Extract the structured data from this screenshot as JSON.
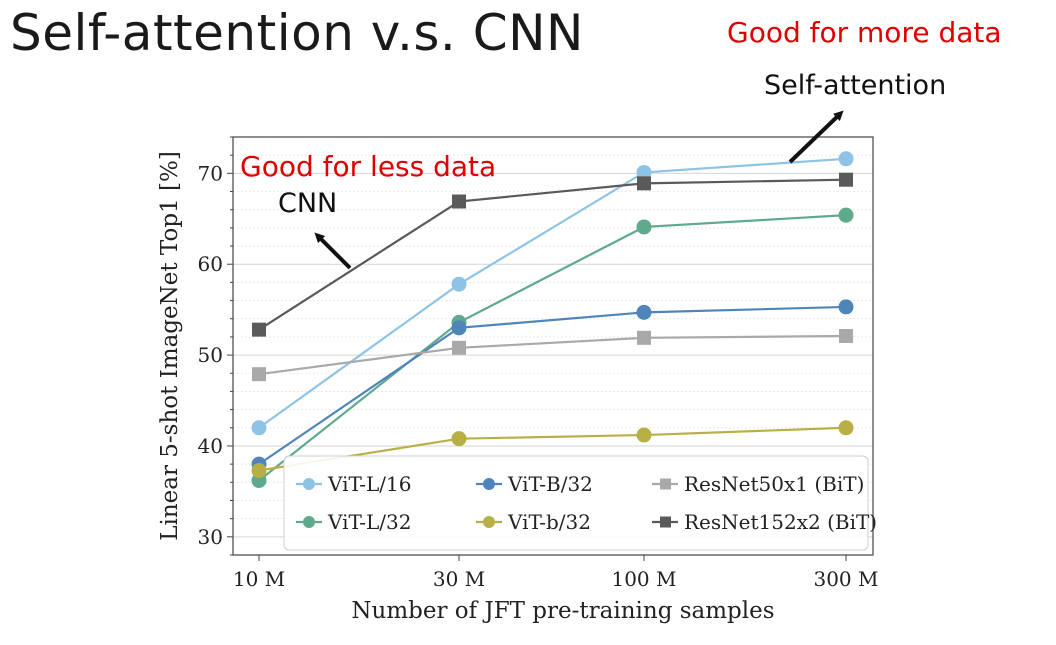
{
  "slide": {
    "title": "Self-attention v.s. CNN",
    "note_more_data": "Good for more data",
    "label_self_attention": "Self-attention",
    "note_less_data": "Good for less data",
    "label_cnn": "CNN"
  },
  "chart_data": {
    "type": "line",
    "xlabel": "Number of JFT pre-training samples",
    "ylabel": "Linear 5-shot ImageNet Top1 [%]",
    "x_scale": "log",
    "categories": [
      "10 M",
      "30 M",
      "100 M",
      "300 M"
    ],
    "ylim": [
      28,
      74
    ],
    "yticks": [
      30,
      40,
      50,
      60,
      70
    ],
    "grid": true,
    "legend_position": "bottom-right",
    "series": [
      {
        "name": "ViT-L/16",
        "color": "#8ec3e6",
        "marker": "circle",
        "values": [
          42.0,
          57.8,
          70.1,
          71.6
        ]
      },
      {
        "name": "ViT-L/32",
        "color": "#5fa98c",
        "marker": "circle",
        "values": [
          36.2,
          53.6,
          64.1,
          65.4
        ]
      },
      {
        "name": "ViT-B/32",
        "color": "#4f85b9",
        "marker": "circle",
        "values": [
          38.0,
          53.0,
          54.7,
          55.3
        ]
      },
      {
        "name": "ViT-b/32",
        "color": "#b8b046",
        "marker": "circle",
        "values": [
          37.3,
          40.8,
          41.2,
          42.0
        ]
      },
      {
        "name": "ResNet50x1 (BiT)",
        "color": "#a9a9a9",
        "marker": "square",
        "values": [
          47.9,
          50.8,
          51.9,
          52.1
        ]
      },
      {
        "name": "ResNet152x2 (BiT)",
        "color": "#5a5a5a",
        "marker": "square",
        "values": [
          52.8,
          66.9,
          68.9,
          69.3
        ]
      }
    ]
  }
}
